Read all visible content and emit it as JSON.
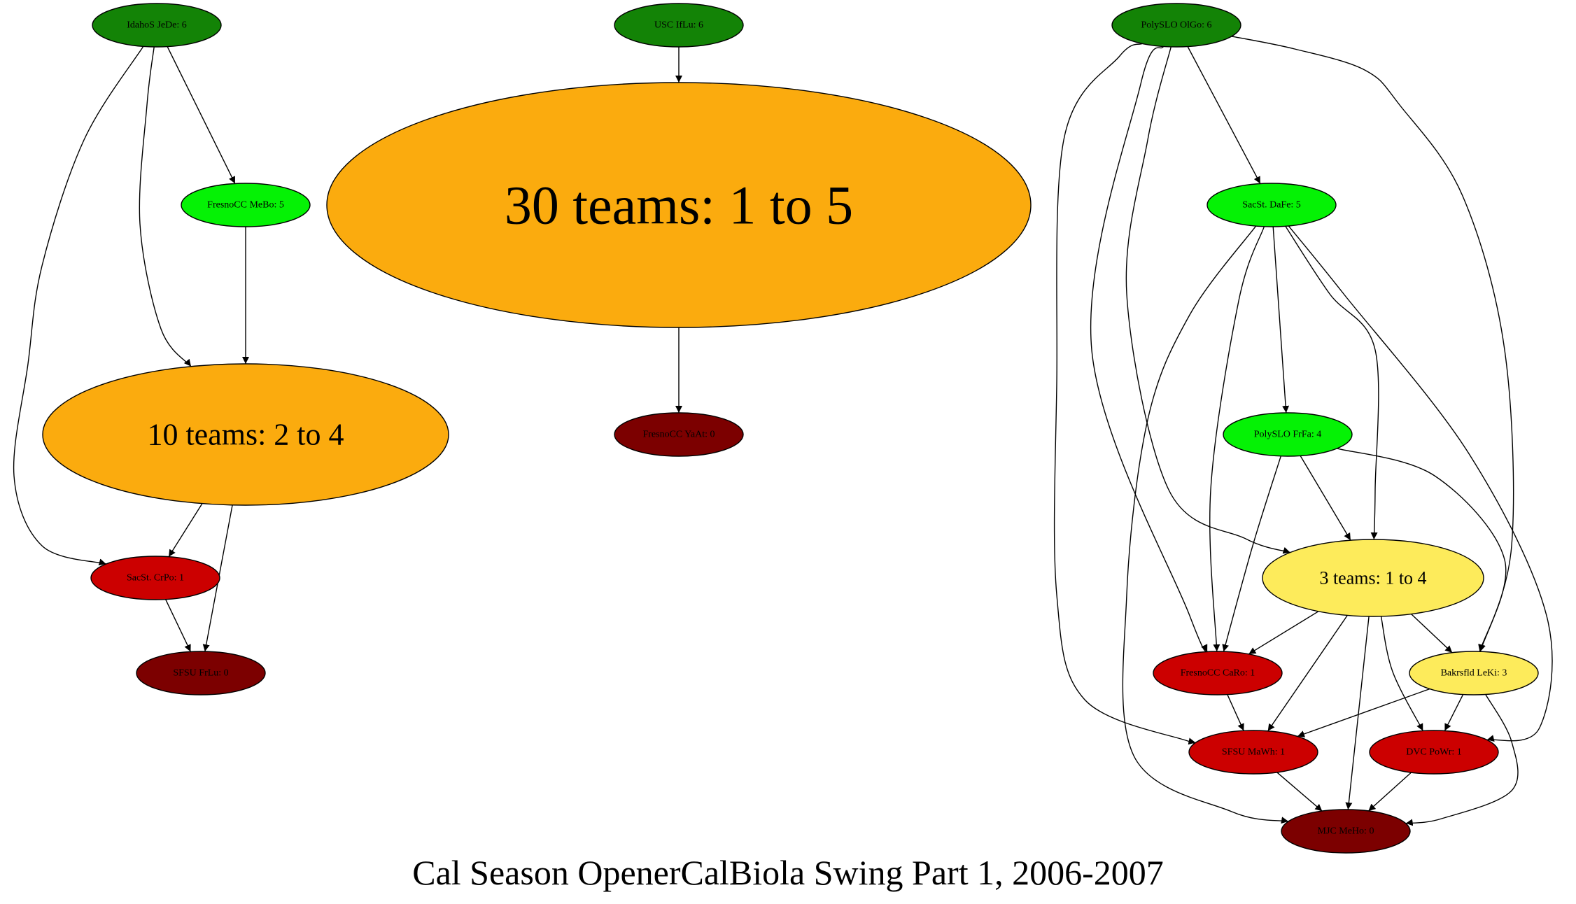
{
  "caption": "Cal Season OpenerCalBiola Swing Part 1, 2006-2007",
  "colors": {
    "dark_green": "#138306",
    "bright_green": "#05f205",
    "orange": "#fbab0e",
    "yellow": "#fdeb5b",
    "red": "#cc0000",
    "dark_red": "#7c0000"
  },
  "nodes": [
    {
      "id": "idahos_jede",
      "label": "IdahoS JeDe: 6",
      "fill": "dark_green"
    },
    {
      "id": "usc_iflu",
      "label": "USC IfLu: 6",
      "fill": "dark_green"
    },
    {
      "id": "polyslo_olgo",
      "label": "PolySLO OlGo: 6",
      "fill": "dark_green"
    },
    {
      "id": "fresnocc_mebo",
      "label": "FresnoCC MeBo: 5",
      "fill": "bright_green"
    },
    {
      "id": "thirty_teams",
      "label": "30 teams: 1 to 5",
      "fill": "orange"
    },
    {
      "id": "sacst_dafe",
      "label": "SacSt. DaFe: 5",
      "fill": "bright_green"
    },
    {
      "id": "ten_teams",
      "label": "10 teams: 2 to 4",
      "fill": "orange"
    },
    {
      "id": "fresnocc_yaat",
      "label": "FresnoCC YaAt: 0",
      "fill": "dark_red"
    },
    {
      "id": "polyslo_frfa",
      "label": "PolySLO FrFa: 4",
      "fill": "bright_green"
    },
    {
      "id": "three_teams",
      "label": "3 teams: 1 to 4",
      "fill": "yellow"
    },
    {
      "id": "sacst_crpo",
      "label": "SacSt. CrPo: 1",
      "fill": "red"
    },
    {
      "id": "sfsu_frlu",
      "label": "SFSU FrLu: 0",
      "fill": "dark_red"
    },
    {
      "id": "fresnocc_caro",
      "label": "FresnoCC CaRo: 1",
      "fill": "red"
    },
    {
      "id": "bakrsfld_leki",
      "label": "Bakrsfld LeKi: 3",
      "fill": "yellow"
    },
    {
      "id": "sfsu_mawh",
      "label": "SFSU MaWh: 1",
      "fill": "red"
    },
    {
      "id": "dvc_powr",
      "label": "DVC PoWr: 1",
      "fill": "red"
    },
    {
      "id": "mjc_meho",
      "label": "MJC MeHo: 0",
      "fill": "dark_red"
    }
  ],
  "edges": [
    {
      "from": "idahos_jede",
      "to": "fresnocc_mebo"
    },
    {
      "from": "idahos_jede",
      "to": "ten_teams"
    },
    {
      "from": "idahos_jede",
      "to": "sacst_crpo"
    },
    {
      "from": "fresnocc_mebo",
      "to": "ten_teams"
    },
    {
      "from": "ten_teams",
      "to": "sacst_crpo"
    },
    {
      "from": "ten_teams",
      "to": "sfsu_frlu"
    },
    {
      "from": "sacst_crpo",
      "to": "sfsu_frlu"
    },
    {
      "from": "usc_iflu",
      "to": "thirty_teams"
    },
    {
      "from": "thirty_teams",
      "to": "fresnocc_yaat"
    },
    {
      "from": "polyslo_olgo",
      "to": "sacst_dafe"
    },
    {
      "from": "polyslo_olgo",
      "to": "bakrsfld_leki"
    },
    {
      "from": "polyslo_olgo",
      "to": "three_teams"
    },
    {
      "from": "polyslo_olgo",
      "to": "fresnocc_caro"
    },
    {
      "from": "polyslo_olgo",
      "to": "sfsu_mawh"
    },
    {
      "from": "sacst_dafe",
      "to": "polyslo_frfa"
    },
    {
      "from": "sacst_dafe",
      "to": "three_teams"
    },
    {
      "from": "sacst_dafe",
      "to": "fresnocc_caro"
    },
    {
      "from": "sacst_dafe",
      "to": "dvc_powr"
    },
    {
      "from": "sacst_dafe",
      "to": "mjc_meho"
    },
    {
      "from": "polyslo_frfa",
      "to": "three_teams"
    },
    {
      "from": "polyslo_frfa",
      "to": "fresnocc_caro"
    },
    {
      "from": "polyslo_frfa",
      "to": "bakrsfld_leki"
    },
    {
      "from": "three_teams",
      "to": "fresnocc_caro"
    },
    {
      "from": "three_teams",
      "to": "bakrsfld_leki"
    },
    {
      "from": "three_teams",
      "to": "sfsu_mawh"
    },
    {
      "from": "three_teams",
      "to": "dvc_powr"
    },
    {
      "from": "three_teams",
      "to": "mjc_meho"
    },
    {
      "from": "fresnocc_caro",
      "to": "sfsu_mawh"
    },
    {
      "from": "bakrsfld_leki",
      "to": "sfsu_mawh"
    },
    {
      "from": "bakrsfld_leki",
      "to": "dvc_powr"
    },
    {
      "from": "bakrsfld_leki",
      "to": "mjc_meho"
    },
    {
      "from": "sfsu_mawh",
      "to": "mjc_meho"
    },
    {
      "from": "dvc_powr",
      "to": "mjc_meho"
    }
  ]
}
